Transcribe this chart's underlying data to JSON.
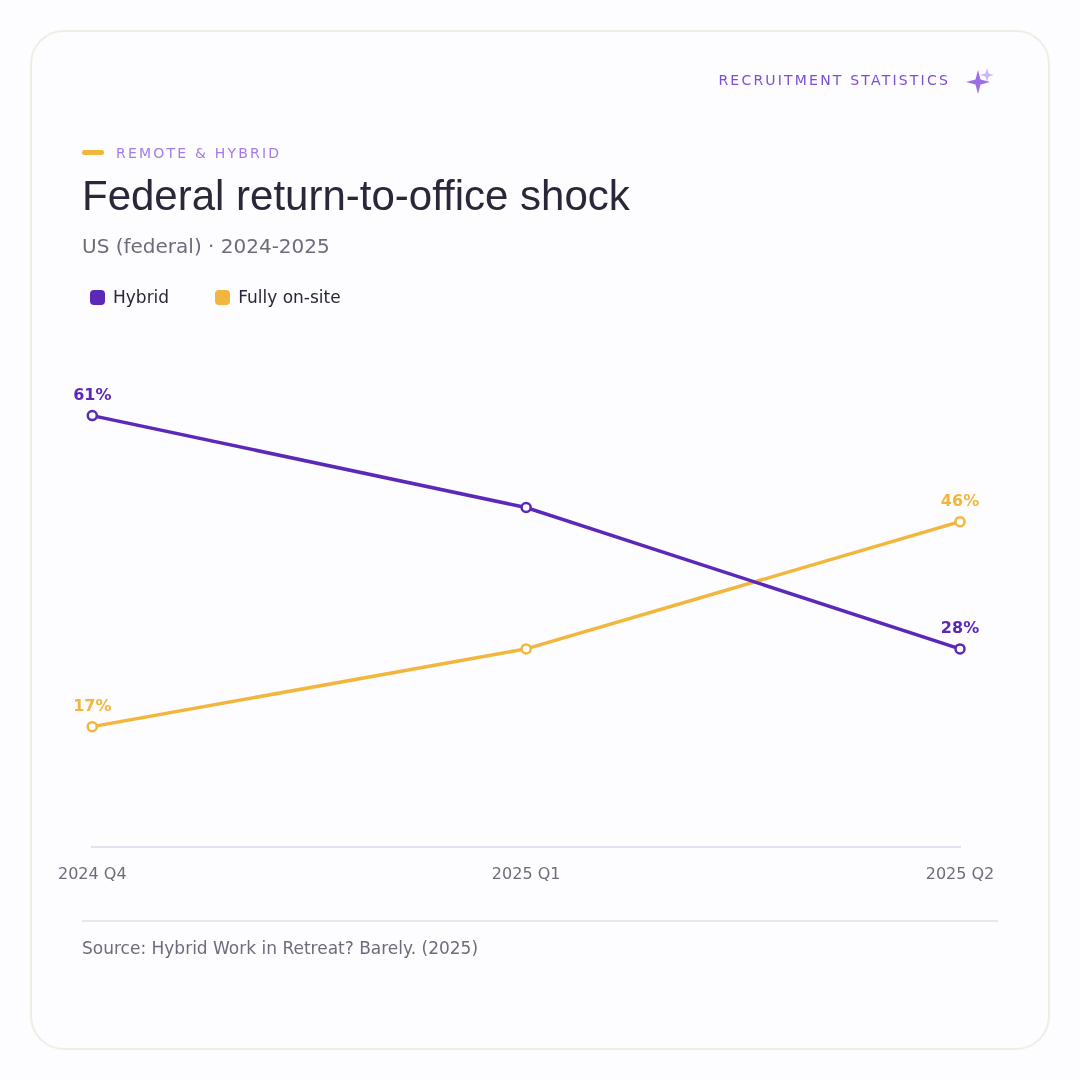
{
  "chart_data": {
    "type": "line",
    "title": "Federal return-to-office shock",
    "subtitle": "US (federal) · 2024-2025",
    "annotations": [
      "RECRUITMENT STATISTICS",
      "REMOTE & HYBRID",
      "Source: Hybrid Work in Retreat? Barely. (2025)"
    ],
    "categories": [
      "2024 Q4",
      "2025 Q1",
      "2025 Q2"
    ],
    "series": [
      {
        "name": "Hybrid",
        "color": "#5b28b8",
        "values": [
          61,
          48,
          28
        ],
        "value_labels": [
          "61%",
          null,
          "28%"
        ]
      },
      {
        "name": "Fully on-site",
        "color": "#f2b63c",
        "values": [
          17,
          28,
          46
        ],
        "value_labels": [
          "17%",
          null,
          "46%"
        ]
      }
    ],
    "legend": "top left",
    "grid": false,
    "marker": "circle",
    "line_style": "solid"
  }
}
